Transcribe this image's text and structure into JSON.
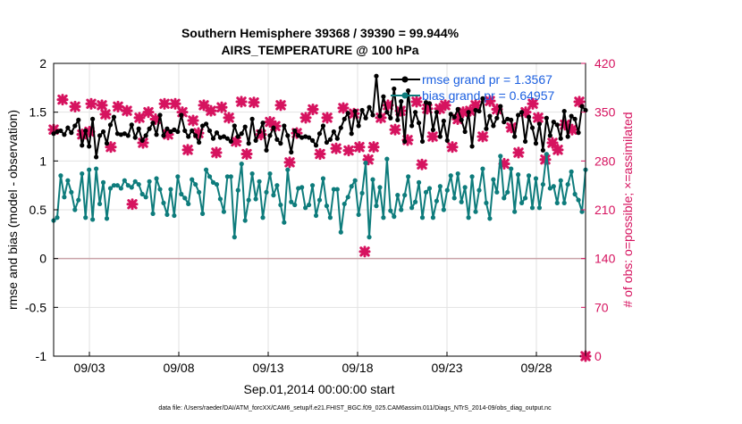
{
  "chart_data": {
    "type": "line",
    "title": "Southern Hemisphere 39368 / 39390 = 99.944%",
    "subtitle": "AIRS_TEMPERATURE @ 100 hPa",
    "xlabel": "Sep.01,2014 00:00:00 start",
    "ylabel_left": "rmse and bias (model - observation)",
    "ylabel_right": "# of obs: o=possible; ×=assimilated",
    "footer": "data file: /Users/raeder/DAI/ATM_forcXX/CAM6_setup/f.e21.FHIST_BGC.f09_025.CAM6assim.011/Diags_NTrS_2014-09/obs_diag_output.nc",
    "x_ticks": [
      "09/03",
      "09/08",
      "09/13",
      "09/18",
      "09/23",
      "09/28"
    ],
    "x_tick_days": [
      3,
      8,
      13,
      18,
      23,
      28
    ],
    "xlim": [
      1,
      30.75
    ],
    "ylim_left": [
      -1,
      2
    ],
    "y_ticks_left": [
      "-1",
      "-0.5",
      "0",
      "0.5",
      "1",
      "1.5",
      "2"
    ],
    "ylim_right": [
      0,
      420
    ],
    "y_ticks_right": [
      "0",
      "70",
      "140",
      "210",
      "280",
      "350",
      "420"
    ],
    "grid": true,
    "legend_position": "top-right",
    "colors": {
      "rmse": "#000000",
      "bias": "#0e7c7c",
      "obs": "#d6135f",
      "zero_line": "#c9a3a8",
      "grid": "#e2e2e2"
    },
    "series": [
      {
        "name": "rmse grand pr = 1.3567",
        "axis": "left",
        "values": [
          1.28,
          1.3,
          1.31,
          1.27,
          1.34,
          1.29,
          1.36,
          1.42,
          1.16,
          1.31,
          1.15,
          1.43,
          1.04,
          1.26,
          1.3,
          1.18,
          1.37,
          1.45,
          1.28,
          1.27,
          1.28,
          1.26,
          1.37,
          1.24,
          1.33,
          1.21,
          1.26,
          1.33,
          1.39,
          1.27,
          1.47,
          1.26,
          1.33,
          1.3,
          1.32,
          1.3,
          1.47,
          1.31,
          1.25,
          1.31,
          1.26,
          1.19,
          1.36,
          1.38,
          1.31,
          1.23,
          1.29,
          1.24,
          1.25,
          1.23,
          1.2,
          1.36,
          1.25,
          1.28,
          1.35,
          1.18,
          1.43,
          1.21,
          1.3,
          1.39,
          1.11,
          1.26,
          1.34,
          1.22,
          1.18,
          1.36,
          1.26,
          1.09,
          1.31,
          1.26,
          1.24,
          1.25,
          1.24,
          1.21,
          1.16,
          1.28,
          1.36,
          1.19,
          1.22,
          1.3,
          1.23,
          1.34,
          1.43,
          1.49,
          1.28,
          1.51,
          1.36,
          1.52,
          1.44,
          1.55,
          1.47,
          1.87,
          1.46,
          1.66,
          1.5,
          1.44,
          1.74,
          1.42,
          1.61,
          1.2,
          1.72,
          1.36,
          1.5,
          1.39,
          1.2,
          1.6,
          1.59,
          1.32,
          1.5,
          1.25,
          1.41,
          1.21,
          1.48,
          1.45,
          1.53,
          1.42,
          1.3,
          1.5,
          1.15,
          1.52,
          1.51,
          1.64,
          1.33,
          1.46,
          1.36,
          1.44,
          1.56,
          1.4,
          1.43,
          1.42,
          1.25,
          1.47,
          1.5,
          1.2,
          1.45,
          1.34,
          1.18,
          1.38,
          1.11,
          1.44,
          1.26,
          1.4,
          1.37,
          1.23,
          1.51,
          1.25,
          1.46,
          1.43,
          1.29,
          1.56,
          1.52
        ]
      },
      {
        "name": "bias grand pr = 0.64957",
        "axis": "left",
        "values": [
          0.39,
          0.42,
          0.85,
          0.63,
          0.8,
          0.68,
          0.5,
          0.6,
          0.87,
          0.42,
          0.91,
          0.4,
          0.92,
          0.56,
          0.78,
          0.41,
          0.72,
          0.75,
          0.75,
          0.72,
          0.8,
          0.75,
          0.73,
          0.79,
          0.76,
          0.66,
          0.63,
          0.79,
          0.46,
          0.82,
          0.71,
          0.57,
          0.45,
          0.71,
          0.44,
          0.84,
          0.66,
          0.62,
          0.56,
          0.81,
          0.76,
          0.68,
          0.46,
          0.91,
          0.84,
          0.78,
          0.76,
          0.61,
          0.48,
          0.84,
          0.84,
          0.22,
          0.7,
          0.97,
          0.39,
          0.6,
          0.87,
          0.61,
          0.79,
          0.42,
          0.68,
          0.87,
          0.65,
          0.75,
          0.55,
          0.37,
          0.91,
          0.58,
          0.55,
          0.72,
          0.73,
          0.52,
          0.55,
          0.75,
          0.44,
          0.6,
          0.82,
          0.54,
          0.42,
          0.71,
          0.71,
          0.27,
          0.56,
          0.63,
          0.74,
          0.8,
          0.45,
          0.67,
          0.98,
          0.22,
          0.81,
          0.54,
          0.73,
          0.42,
          1.02,
          0.49,
          0.43,
          0.65,
          0.5,
          0.65,
          0.84,
          0.52,
          0.58,
          0.78,
          0.42,
          0.68,
          0.72,
          0.42,
          0.59,
          0.74,
          0.5,
          0.7,
          0.85,
          0.62,
          0.87,
          0.58,
          0.73,
          0.42,
          0.84,
          0.48,
          0.7,
          0.92,
          0.57,
          0.41,
          0.81,
          0.68,
          1.05,
          0.62,
          0.68,
          0.92,
          0.48,
          0.86,
          0.57,
          0.62,
          0.85,
          0.52,
          0.82,
          0.52,
          0.76,
          1.07,
          0.72,
          0.74,
          0.57,
          0.8,
          0.57,
          0.76,
          0.89,
          0.66,
          0.6,
          0.48,
          0.91
        ]
      },
      {
        "name": "obs assimilated",
        "axis": "right",
        "values": [
          [
            1.0,
            325
          ],
          [
            1.5,
            368
          ],
          [
            2.2,
            358
          ],
          [
            2.6,
            318
          ],
          [
            3.0,
            322
          ],
          [
            3.1,
            362
          ],
          [
            3.7,
            360
          ],
          [
            3.9,
            347
          ],
          [
            4.2,
            300
          ],
          [
            4.6,
            358
          ],
          [
            5.1,
            352
          ],
          [
            5.4,
            218
          ],
          [
            5.8,
            342
          ],
          [
            6.0,
            306
          ],
          [
            6.3,
            350
          ],
          [
            6.7,
            340
          ],
          [
            7.2,
            362
          ],
          [
            7.4,
            318
          ],
          [
            7.8,
            362
          ],
          [
            8.2,
            350
          ],
          [
            8.5,
            296
          ],
          [
            8.8,
            338
          ],
          [
            9.1,
            320
          ],
          [
            9.4,
            360
          ],
          [
            9.8,
            352
          ],
          [
            10.1,
            292
          ],
          [
            10.4,
            357
          ],
          [
            10.8,
            342
          ],
          [
            11.2,
            308
          ],
          [
            11.5,
            365
          ],
          [
            11.8,
            290
          ],
          [
            12.2,
            364
          ],
          [
            12.6,
            318
          ],
          [
            13.1,
            336
          ],
          [
            13.4,
            330
          ],
          [
            13.7,
            360
          ],
          [
            14.2,
            278
          ],
          [
            14.6,
            320
          ],
          [
            15.1,
            342
          ],
          [
            15.5,
            354
          ],
          [
            15.9,
            290
          ],
          [
            16.3,
            342
          ],
          [
            16.8,
            298
          ],
          [
            17.2,
            356
          ],
          [
            17.5,
            295
          ],
          [
            17.8,
            348
          ],
          [
            18.1,
            300
          ],
          [
            18.4,
            150
          ],
          [
            18.6,
            282
          ],
          [
            18.9,
            300
          ],
          [
            19.3,
            342
          ],
          [
            19.7,
            360
          ],
          [
            20.1,
            325
          ],
          [
            20.4,
            352
          ],
          [
            20.8,
            310
          ],
          [
            21.3,
            365
          ],
          [
            21.6,
            275
          ],
          [
            21.9,
            355
          ],
          [
            22.2,
            315
          ],
          [
            22.6,
            355
          ],
          [
            22.9,
            360
          ],
          [
            23.3,
            300
          ],
          [
            23.6,
            340
          ],
          [
            23.9,
            350
          ],
          [
            24.3,
            352
          ],
          [
            24.6,
            360
          ],
          [
            25.0,
            315
          ],
          [
            25.4,
            366
          ],
          [
            25.8,
            354
          ],
          [
            26.2,
            276
          ],
          [
            26.6,
            328
          ],
          [
            27.0,
            292
          ],
          [
            27.4,
            350
          ],
          [
            27.8,
            362
          ],
          [
            28.1,
            342
          ],
          [
            28.5,
            282
          ],
          [
            28.9,
            306
          ],
          [
            29.2,
            296
          ],
          [
            29.6,
            332
          ],
          [
            30.0,
            325
          ],
          [
            30.4,
            365
          ],
          [
            30.75,
            0
          ]
        ]
      }
    ]
  }
}
